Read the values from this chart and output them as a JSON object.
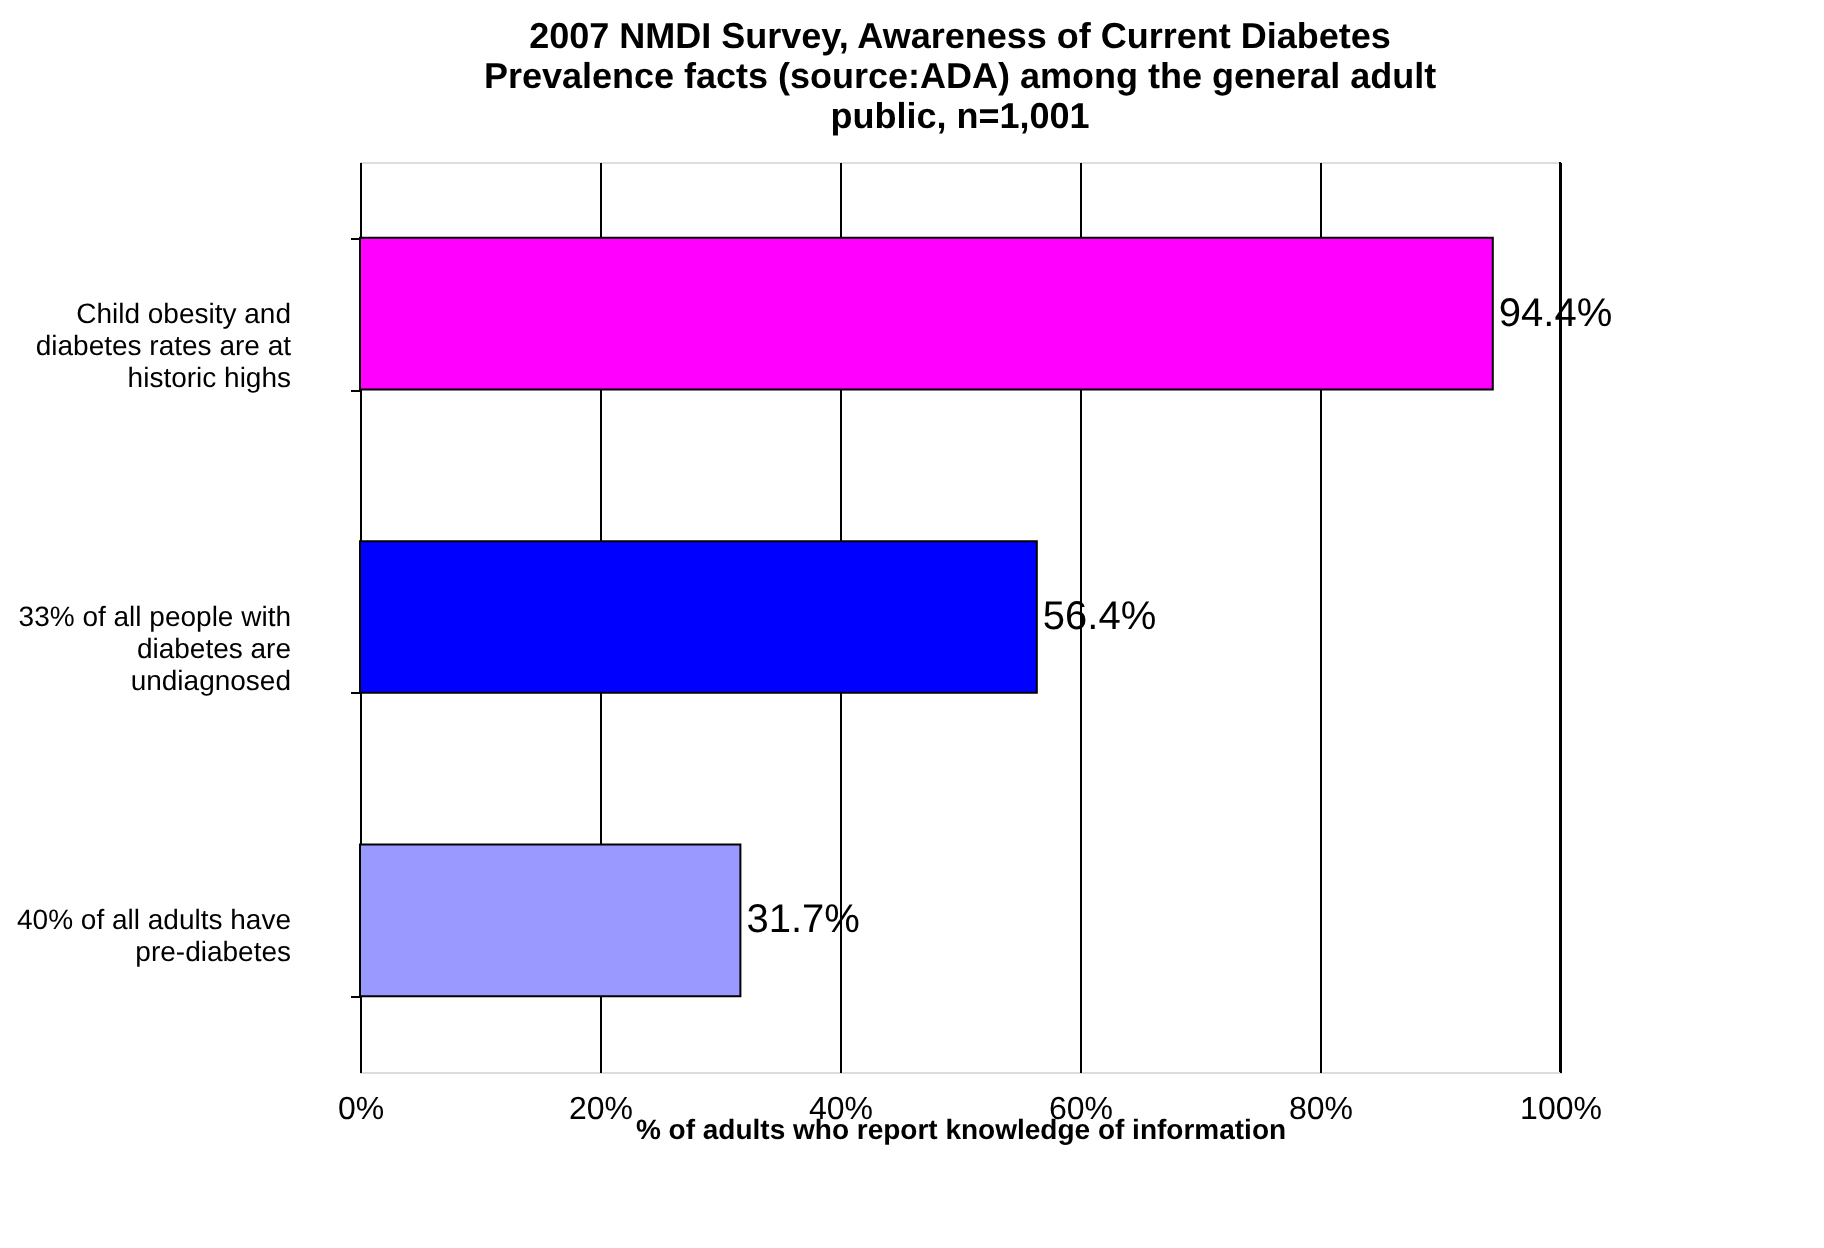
{
  "chart_data": {
    "type": "bar",
    "orientation": "horizontal",
    "title": "2007 NMDI Survey, Awareness of Current Diabetes\nPrevalence facts (source:ADA) among the general adult\npublic, n=1,001",
    "xlabel": "% of adults who report knowledge of information",
    "categories": [
      "Child obesity and\ndiabetes rates are at\nhistoric highs",
      "33% of all people with\ndiabetes are\nundiagnosed",
      "40% of all adults have\npre-diabetes"
    ],
    "values": [
      94.4,
      56.4,
      31.7
    ],
    "colors": [
      "#ff00ff",
      "#0000ff",
      "#9999ff"
    ],
    "value_labels": [
      "94.4%",
      "56.4%",
      "31.7%"
    ],
    "xlim": [
      0,
      100
    ],
    "xticks": [
      {
        "value": 0,
        "label": "0%"
      },
      {
        "value": 20,
        "label": "20%"
      },
      {
        "value": 40,
        "label": "40%"
      },
      {
        "value": 60,
        "label": "60%"
      },
      {
        "value": 80,
        "label": "80%"
      },
      {
        "value": 100,
        "label": "100%"
      }
    ],
    "grid": "x"
  }
}
